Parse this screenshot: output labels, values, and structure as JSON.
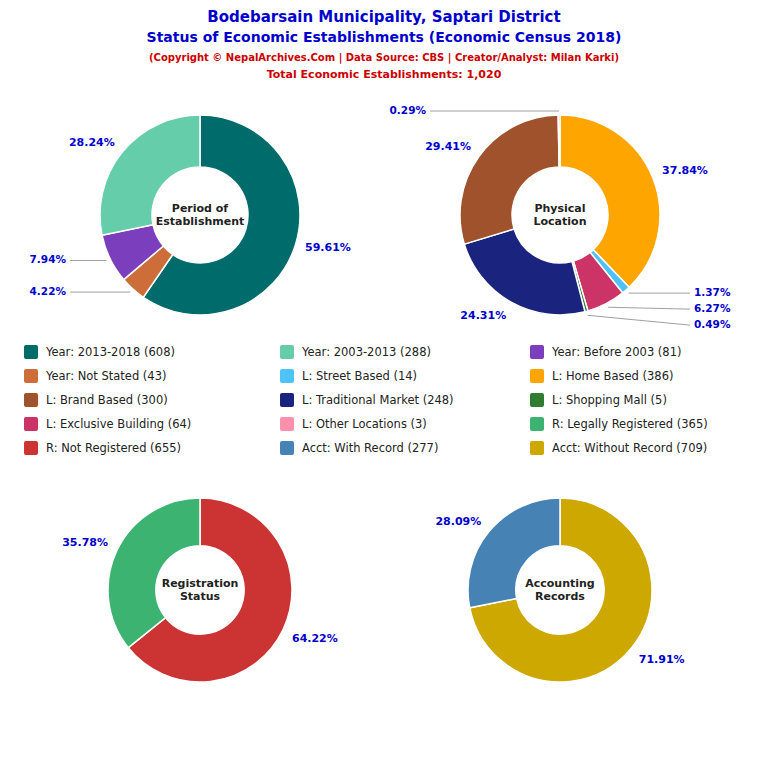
{
  "title": [
    "Bodebarsain Municipality, Saptari District",
    "Status of Economic Establishments (Economic Census 2018)"
  ],
  "title_color": "#0000CC",
  "subtitle": [
    "(Copyright © NepalArchives.Com | Data Source: CBS | Creator/Analyst: Milan Karki)",
    "Total Economic Establishments: 1,020"
  ],
  "subtitle_color": "#CC0000",
  "legend_items": [
    {
      "label": "Year: 2013-2018 (608)",
      "color": "#006B6B"
    },
    {
      "label": "Year: Not Stated (43)",
      "color": "#CD6D3A"
    },
    {
      "label": "L: Brand Based (300)",
      "color": "#A0522D"
    },
    {
      "label": "L: Exclusive Building (64)",
      "color": "#CC3366"
    },
    {
      "label": "R: Not Registered (655)",
      "color": "#CC3333"
    },
    {
      "label": "Year: 2003-2013 (288)",
      "color": "#66CDAA"
    },
    {
      "label": "L: Street Based (14)",
      "color": "#4FC3F7"
    },
    {
      "label": "L: Traditional Market (248)",
      "color": "#1A237E"
    },
    {
      "label": "L: Other Locations (3)",
      "color": "#FF8FAB"
    },
    {
      "label": "Acct: With Record (277)",
      "color": "#4682B4"
    },
    {
      "label": "Year: Before 2003 (81)",
      "color": "#7B3FBE"
    },
    {
      "label": "L: Home Based (386)",
      "color": "#FFA500"
    },
    {
      "label": "L: Shopping Mall (5)",
      "color": "#2E7D32"
    },
    {
      "label": "R: Legally Registered (365)",
      "color": "#3CB371"
    },
    {
      "label": "Acct: Without Record (709)",
      "color": "#CCA800"
    }
  ],
  "chart_data": [
    {
      "type": "pie",
      "title": "Period of\nEstablishment",
      "values": [
        59.61,
        4.22,
        7.94,
        28.24
      ],
      "value_labels": [
        "59.61%",
        "4.22%",
        "7.94%",
        "28.24%"
      ],
      "colors": [
        "#006B6B",
        "#CD6D3A",
        "#7B3FBE",
        "#66CDAA"
      ],
      "data_labels": true
    },
    {
      "type": "pie",
      "title": "Physical\nLocation",
      "values": [
        37.84,
        1.37,
        6.27,
        0.49,
        24.31,
        29.41,
        0.29
      ],
      "value_labels": [
        "37.84%",
        "1.37%",
        "6.27%",
        "0.49%",
        "24.31%",
        "29.41%",
        "0.29%"
      ],
      "colors": [
        "#FFA500",
        "#4FC3F7",
        "#CC3366",
        "#2E7D32",
        "#1A237E",
        "#A0522D",
        "#FF8FAB"
      ],
      "data_labels": true
    },
    {
      "type": "pie",
      "title": "Registration\nStatus",
      "values": [
        64.22,
        35.78
      ],
      "value_labels": [
        "64.22%",
        "35.78%"
      ],
      "colors": [
        "#CC3333",
        "#3CB371"
      ],
      "data_labels": true
    },
    {
      "type": "pie",
      "title": "Accounting\nRecords",
      "values": [
        71.91,
        28.09
      ],
      "value_labels": [
        "71.91%",
        "28.09%"
      ],
      "colors": [
        "#CCA800",
        "#4682B4"
      ],
      "data_labels": true
    }
  ]
}
